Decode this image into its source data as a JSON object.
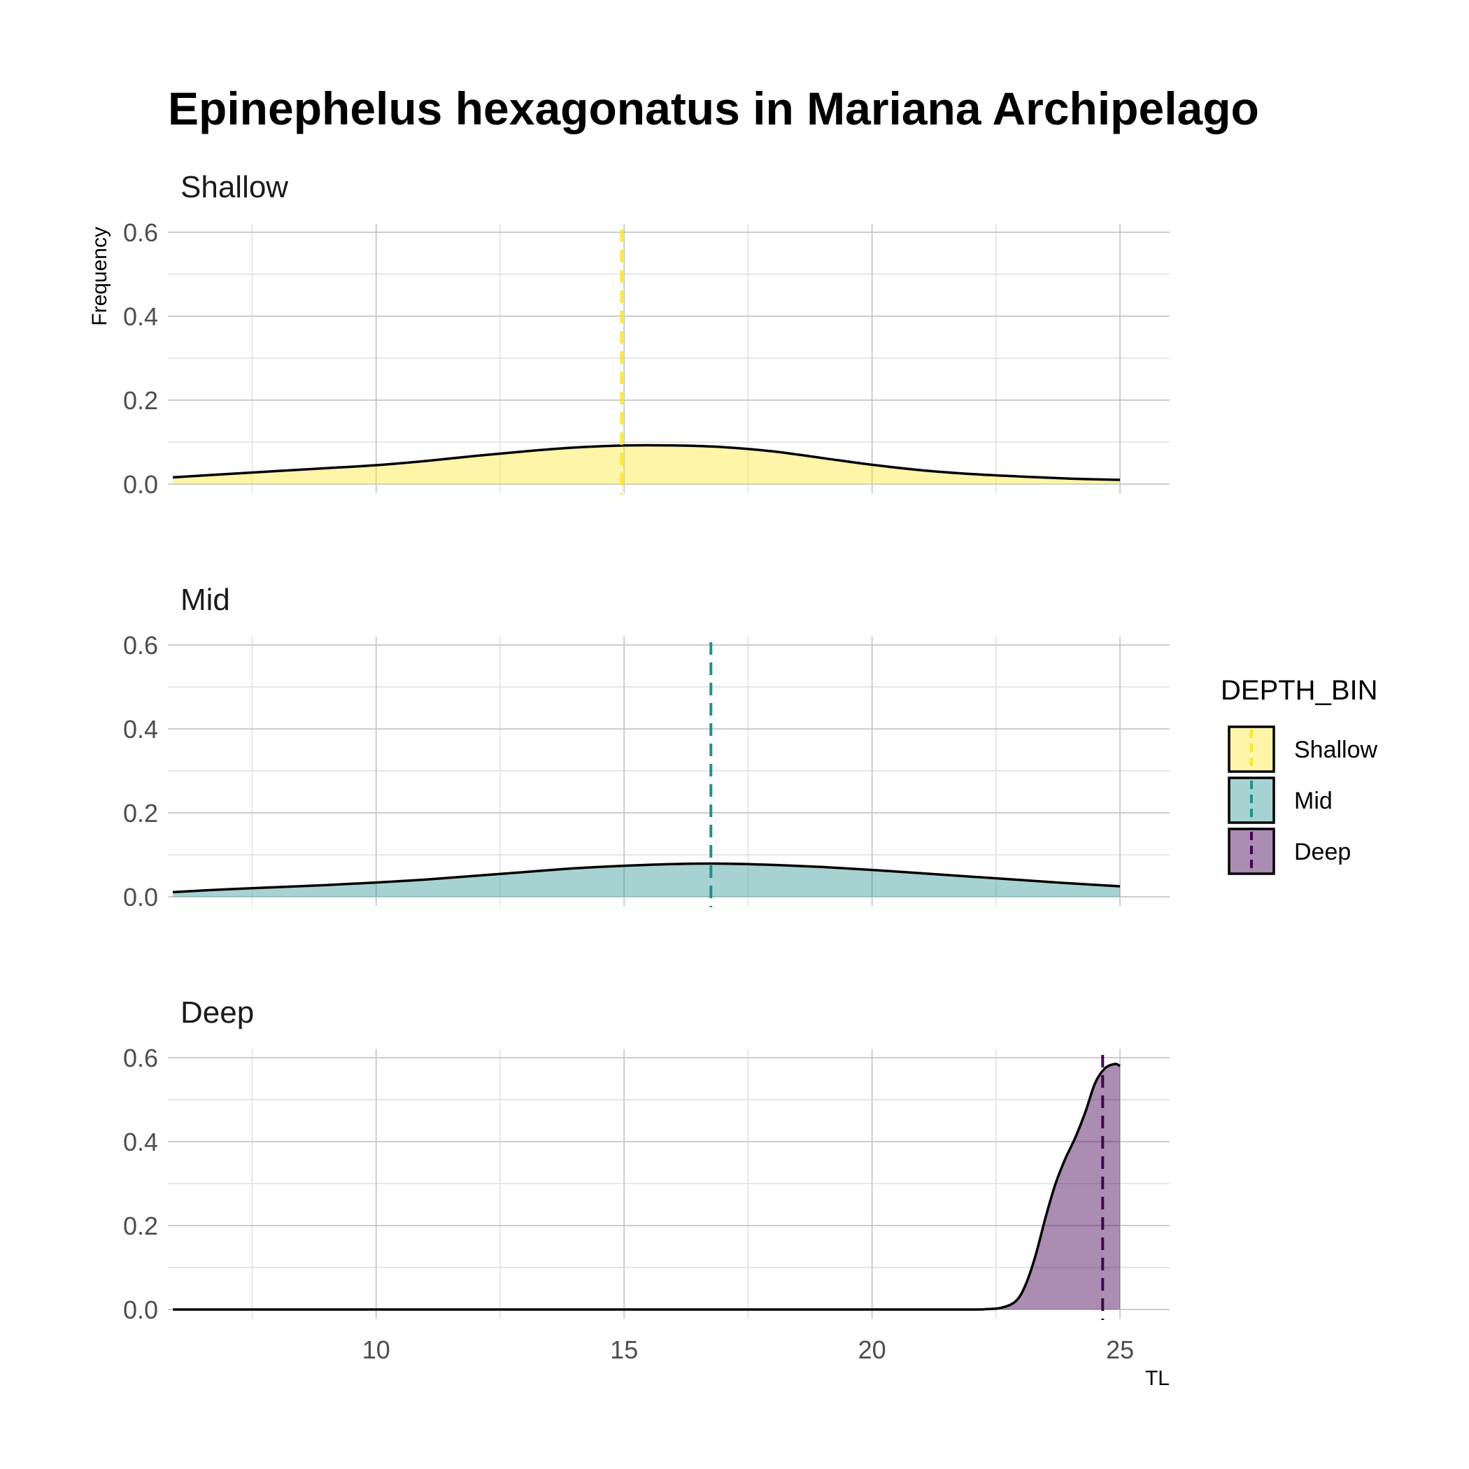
{
  "chart_data": {
    "type": "area",
    "title": "Epinephelus hexagonatus in Mariana Archipelago",
    "xlabel": "TL",
    "ylabel": "Frequency",
    "xlim": [
      5.8,
      26
    ],
    "ylim": [
      0,
      0.6
    ],
    "x_ticks": [
      10,
      15,
      20,
      25
    ],
    "y_ticks": [
      0.0,
      0.2,
      0.4,
      0.6
    ],
    "y_tick_labels": [
      "0.0",
      "0.2",
      "0.4",
      "0.6"
    ],
    "grid": true,
    "facets": [
      {
        "name": "Shallow",
        "fill": "#FDE725",
        "fill_opacity": 0.4,
        "mean_line": {
          "x": 14.95,
          "color": "#FDE725",
          "style": "dashed"
        },
        "x": [
          5.9,
          7,
          8,
          9,
          10,
          11,
          12,
          13,
          14,
          15,
          16,
          17,
          18,
          19,
          20,
          21,
          22,
          23,
          24,
          25
        ],
        "y": [
          0.016,
          0.024,
          0.031,
          0.038,
          0.045,
          0.055,
          0.067,
          0.078,
          0.087,
          0.092,
          0.092,
          0.088,
          0.078,
          0.062,
          0.046,
          0.033,
          0.024,
          0.018,
          0.013,
          0.01
        ]
      },
      {
        "name": "Mid",
        "fill": "#21908C",
        "fill_opacity": 0.4,
        "mean_line": {
          "x": 16.75,
          "color": "#21908C",
          "style": "dashed"
        },
        "x": [
          5.9,
          7,
          8,
          9,
          10,
          11,
          12,
          13,
          14,
          15,
          16,
          17,
          18,
          19,
          20,
          21,
          22,
          23,
          24,
          25
        ],
        "y": [
          0.011,
          0.018,
          0.023,
          0.028,
          0.034,
          0.041,
          0.05,
          0.059,
          0.068,
          0.074,
          0.078,
          0.079,
          0.076,
          0.071,
          0.064,
          0.056,
          0.048,
          0.04,
          0.032,
          0.025
        ]
      },
      {
        "name": "Deep",
        "fill": "#440154",
        "fill_opacity": 0.45,
        "mean_line": {
          "x": 24.65,
          "color": "#440154",
          "style": "dashed"
        },
        "x": [
          5.9,
          10,
          15,
          20,
          22,
          22.3,
          22.6,
          22.9,
          23.1,
          23.3,
          23.5,
          23.7,
          23.9,
          24.1,
          24.3,
          24.5,
          24.7,
          24.9,
          25
        ],
        "y": [
          0,
          0,
          0,
          0,
          0,
          0.001,
          0.004,
          0.02,
          0.06,
          0.13,
          0.22,
          0.3,
          0.36,
          0.41,
          0.47,
          0.54,
          0.575,
          0.585,
          0.58
        ]
      }
    ],
    "legend": {
      "title": "DEPTH_BIN",
      "position": "right",
      "entries": [
        "Shallow",
        "Mid",
        "Deep"
      ]
    }
  }
}
